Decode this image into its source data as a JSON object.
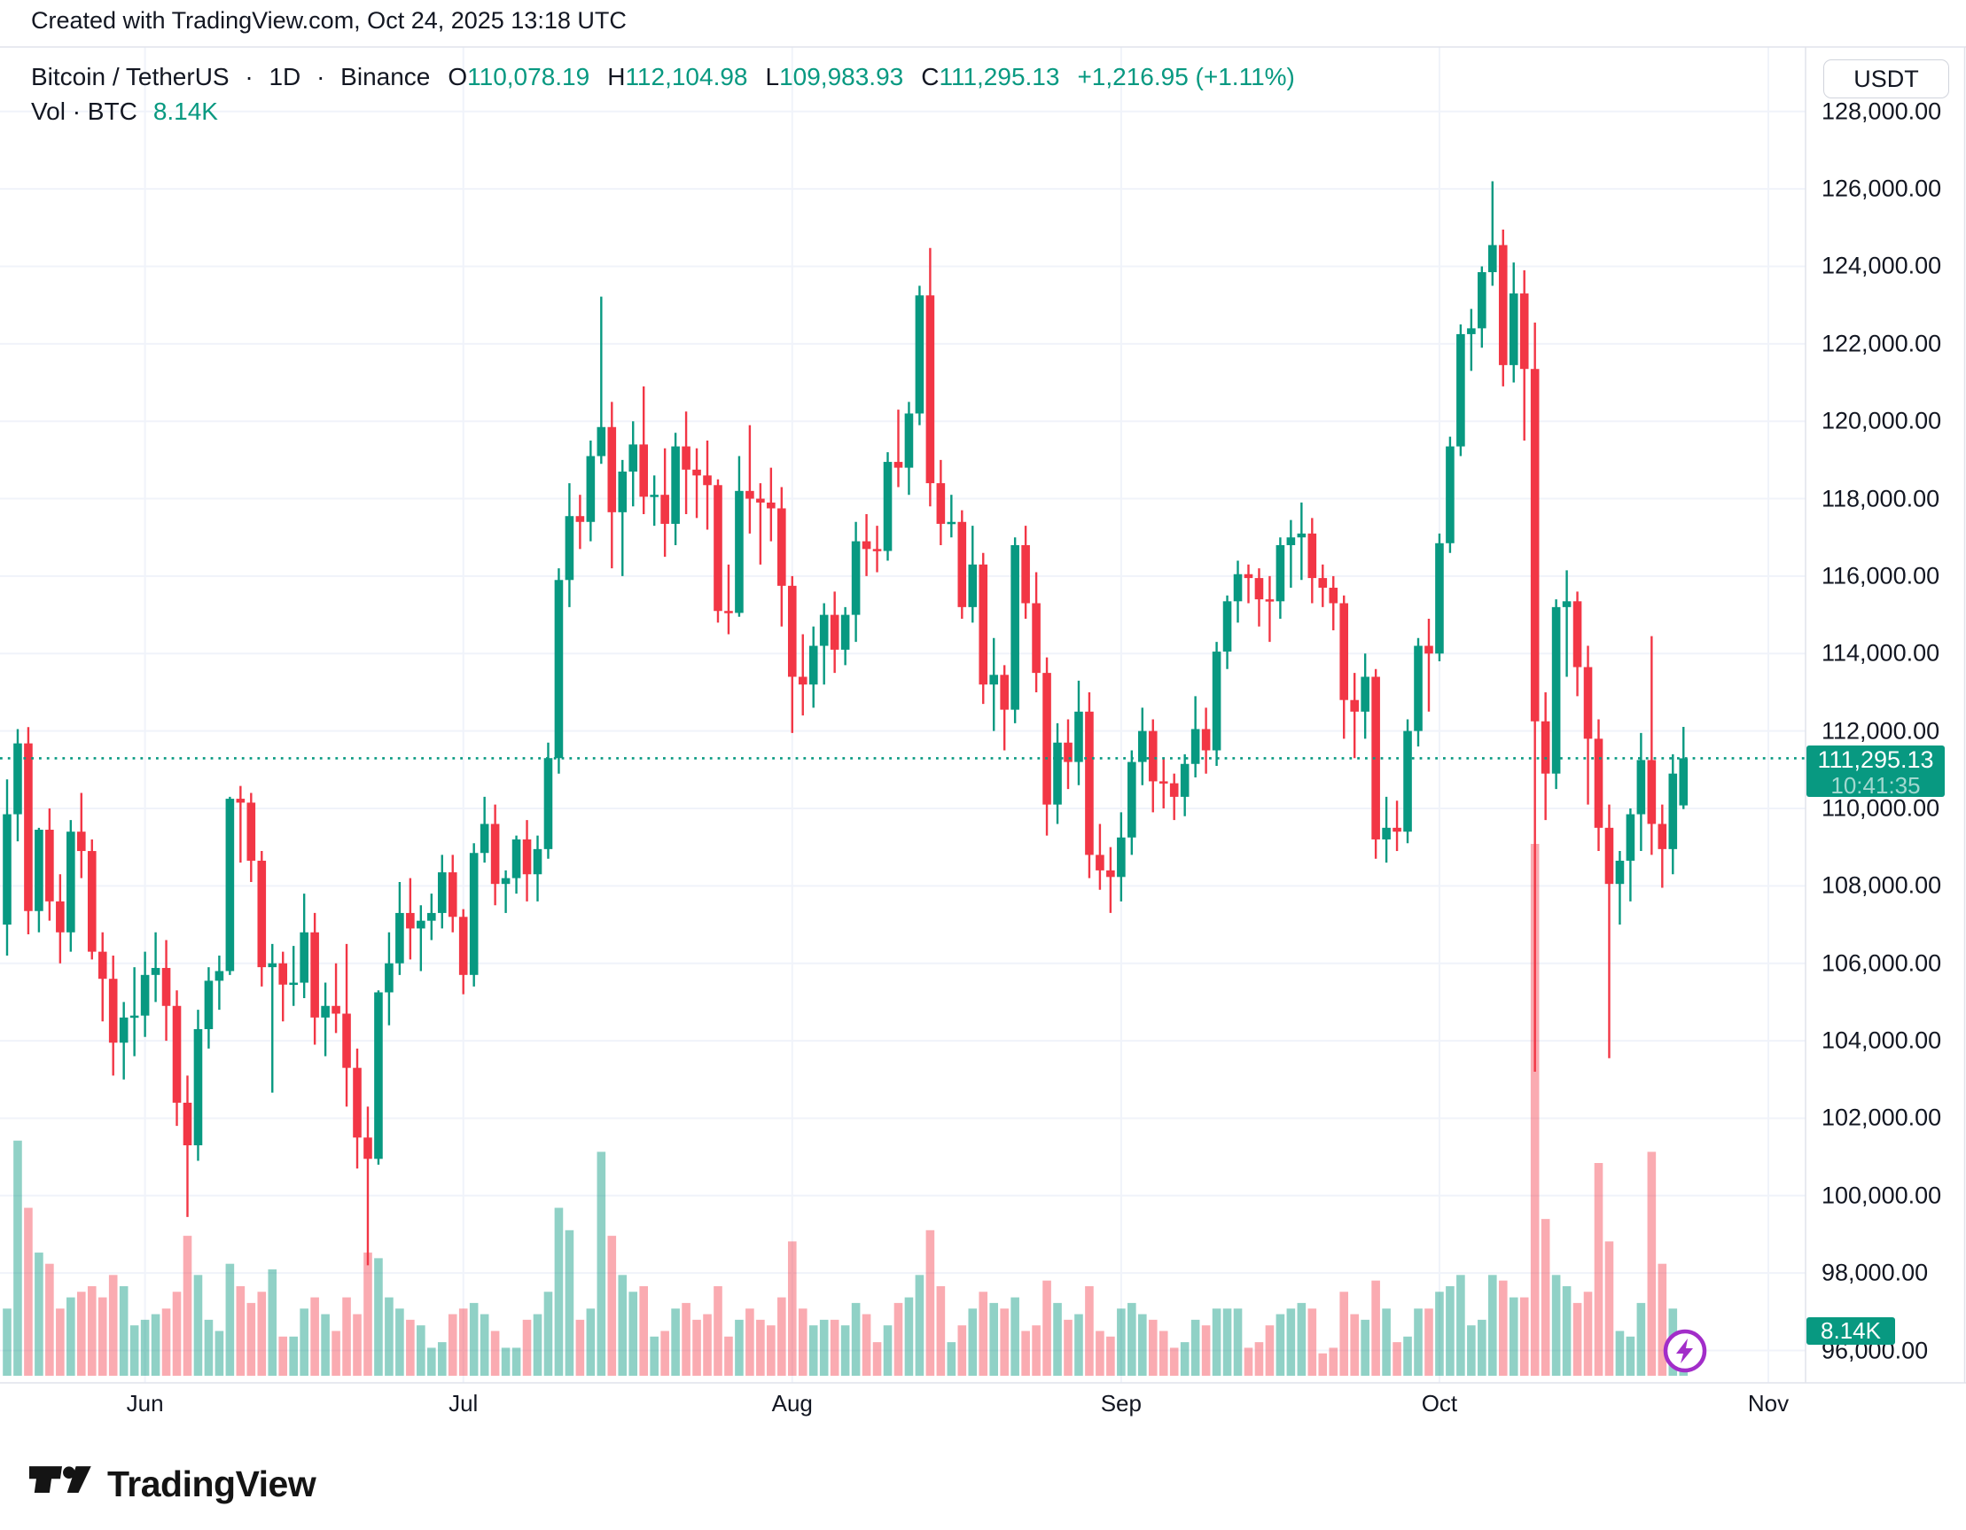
{
  "attribution": "Created with TradingView.com, Oct 24, 2025 13:18 UTC",
  "toolbar": {
    "currency_button_label": "USDT"
  },
  "legend": {
    "symbol": "Bitcoin / TetherUS",
    "separator": "·",
    "interval": "1D",
    "exchange": "Binance",
    "ohlc": [
      {
        "label": "O",
        "value": "110,078.19"
      },
      {
        "label": "H",
        "value": "112,104.98"
      },
      {
        "label": "L",
        "value": "109,983.93"
      },
      {
        "label": "C",
        "value": "111,295.13"
      }
    ],
    "change": "+1,216.95 (+1.11%)",
    "volume_label": "Vol · BTC",
    "volume_value": "8.14K"
  },
  "price_axis": {
    "labels": [
      "128,000.00",
      "126,000.00",
      "124,000.00",
      "122,000.00",
      "120,000.00",
      "118,000.00",
      "116,000.00",
      "114,000.00",
      "112,000.00",
      "110,000.00",
      "108,000.00",
      "106,000.00",
      "104,000.00",
      "102,000.00",
      "100,000.00",
      "98,000.00",
      "96,000.00"
    ],
    "values": [
      128000,
      126000,
      124000,
      122000,
      120000,
      118000,
      116000,
      114000,
      112000,
      110000,
      108000,
      106000,
      104000,
      102000,
      100000,
      98000,
      96000
    ],
    "current_price_label": "111,295.13",
    "countdown": "10:41:35"
  },
  "time_axis": {
    "months": [
      {
        "label": "Jun",
        "index": 13
      },
      {
        "label": "Jul",
        "index": 43
      },
      {
        "label": "Aug",
        "index": 74
      },
      {
        "label": "Sep",
        "index": 105
      },
      {
        "label": "Oct",
        "index": 135
      },
      {
        "label": "Nov",
        "index": 166
      }
    ]
  },
  "volume_badge": "8.14K",
  "footer": {
    "logo_text": "TradingView"
  },
  "colors": {
    "up": "#089981",
    "down": "#F23645",
    "volume_up": "rgba(8,153,129,0.45)",
    "volume_down": "rgba(242,54,69,0.42)",
    "grid": "#f0f3fa",
    "border": "#e0e3eb",
    "text": "#131722",
    "badge_bg": "#089981",
    "flash_purple": "#A22DC9"
  },
  "chart_data": {
    "type": "candlestick+volume",
    "symbol": "BTCUSDT",
    "timeframe": "1D",
    "year": 2025,
    "current_price": 111295.13,
    "price_axis_range_visible": [
      94600,
      128900
    ],
    "volume_unit": "K BTC",
    "volume_scale_max": 95,
    "grid": {
      "horizontal_step": 2000,
      "vertical": "month-start"
    },
    "columns": [
      "date",
      "open",
      "high",
      "low",
      "close",
      "volume_kBTC"
    ],
    "candles": [
      [
        "05-19",
        107000,
        110750,
        106200,
        109850,
        12
      ],
      [
        "05-20",
        109850,
        112050,
        109150,
        111680,
        42
      ],
      [
        "05-21",
        111680,
        112100,
        106750,
        107350,
        30
      ],
      [
        "05-22",
        107350,
        109500,
        106800,
        109450,
        22
      ],
      [
        "05-23",
        109450,
        110000,
        107100,
        107600,
        20
      ],
      [
        "05-24",
        107600,
        108300,
        106000,
        106800,
        12
      ],
      [
        "05-25",
        106800,
        109700,
        106300,
        109400,
        14
      ],
      [
        "05-26",
        109400,
        110400,
        108200,
        108900,
        15
      ],
      [
        "05-27",
        108900,
        109200,
        106100,
        106300,
        16
      ],
      [
        "05-28",
        106300,
        106800,
        104500,
        105600,
        14
      ],
      [
        "05-29",
        105600,
        106200,
        103100,
        103950,
        18
      ],
      [
        "05-30",
        103950,
        105000,
        103000,
        104600,
        16
      ],
      [
        "05-31",
        104600,
        105900,
        103600,
        104650,
        9
      ],
      [
        "06-01",
        104650,
        106300,
        104100,
        105700,
        10
      ],
      [
        "06-02",
        105700,
        106800,
        105000,
        105880,
        11
      ],
      [
        "06-03",
        105880,
        106600,
        104000,
        104900,
        12
      ],
      [
        "06-04",
        104900,
        105300,
        101800,
        102400,
        15
      ],
      [
        "06-05",
        102400,
        103100,
        99450,
        101300,
        25
      ],
      [
        "06-06",
        101300,
        104800,
        100900,
        104300,
        18
      ],
      [
        "06-07",
        104300,
        105900,
        103800,
        105550,
        10
      ],
      [
        "06-08",
        105550,
        106200,
        104800,
        105800,
        8
      ],
      [
        "06-09",
        105800,
        110300,
        105700,
        110250,
        20
      ],
      [
        "06-10",
        110250,
        110580,
        108600,
        110150,
        16
      ],
      [
        "06-11",
        110150,
        110400,
        108100,
        108650,
        13
      ],
      [
        "06-12",
        108650,
        108900,
        105400,
        105900,
        15
      ],
      [
        "06-13",
        105900,
        106500,
        102660,
        106000,
        19
      ],
      [
        "06-14",
        106000,
        106300,
        104500,
        105450,
        7
      ],
      [
        "06-15",
        105450,
        106450,
        104900,
        105500,
        7
      ],
      [
        "06-16",
        105500,
        107800,
        105100,
        106800,
        12
      ],
      [
        "06-17",
        106800,
        107300,
        103900,
        104600,
        14
      ],
      [
        "06-18",
        104600,
        105500,
        103600,
        104900,
        11
      ],
      [
        "06-19",
        104900,
        106000,
        104200,
        104700,
        8
      ],
      [
        "06-20",
        104700,
        106500,
        102300,
        103300,
        14
      ],
      [
        "06-21",
        103300,
        103800,
        100700,
        101500,
        11
      ],
      [
        "06-22",
        101500,
        102300,
        98200,
        100950,
        22
      ],
      [
        "06-23",
        100950,
        105300,
        100800,
        105250,
        21
      ],
      [
        "06-24",
        105250,
        106800,
        104400,
        106000,
        14
      ],
      [
        "06-25",
        106000,
        108100,
        105700,
        107300,
        12
      ],
      [
        "06-26",
        107300,
        108200,
        106100,
        106900,
        10
      ],
      [
        "06-27",
        106900,
        107500,
        105800,
        107100,
        9
      ],
      [
        "06-28",
        107100,
        107800,
        106600,
        107300,
        5
      ],
      [
        "06-29",
        107300,
        108800,
        106900,
        108350,
        6
      ],
      [
        "06-30",
        108350,
        108800,
        106800,
        107200,
        11
      ],
      [
        "07-01",
        107200,
        107400,
        105200,
        105700,
        12
      ],
      [
        "07-02",
        105700,
        109100,
        105400,
        108850,
        13
      ],
      [
        "07-03",
        108850,
        110300,
        108600,
        109600,
        11
      ],
      [
        "07-04",
        109600,
        110100,
        107500,
        108050,
        8
      ],
      [
        "07-05",
        108050,
        108400,
        107300,
        108200,
        5
      ],
      [
        "07-06",
        108200,
        109300,
        107800,
        109200,
        5
      ],
      [
        "07-07",
        109200,
        109700,
        107600,
        108300,
        10
      ],
      [
        "07-08",
        108300,
        109300,
        107600,
        108950,
        11
      ],
      [
        "07-09",
        108950,
        111700,
        108700,
        111300,
        15
      ],
      [
        "07-10",
        111300,
        116200,
        110900,
        115900,
        30
      ],
      [
        "07-11",
        115900,
        118400,
        115200,
        117550,
        26
      ],
      [
        "07-12",
        117550,
        118100,
        116700,
        117400,
        10
      ],
      [
        "07-13",
        117400,
        119500,
        116900,
        119100,
        12
      ],
      [
        "07-14",
        119100,
        123218,
        118900,
        119850,
        40
      ],
      [
        "07-15",
        119850,
        120500,
        116200,
        117650,
        25
      ],
      [
        "07-16",
        117650,
        119000,
        116000,
        118700,
        18
      ],
      [
        "07-17",
        118700,
        120000,
        117800,
        119400,
        15
      ],
      [
        "07-18",
        119400,
        120900,
        117600,
        118050,
        16
      ],
      [
        "07-19",
        118050,
        118600,
        117300,
        118100,
        7
      ],
      [
        "07-20",
        118100,
        119300,
        116500,
        117350,
        8
      ],
      [
        "07-21",
        117350,
        119700,
        116800,
        119350,
        12
      ],
      [
        "07-22",
        119350,
        120250,
        117600,
        118750,
        13
      ],
      [
        "07-23",
        118750,
        119300,
        117500,
        118600,
        10
      ],
      [
        "07-24",
        118600,
        119500,
        117200,
        118350,
        11
      ],
      [
        "07-25",
        118350,
        118500,
        114800,
        115100,
        16
      ],
      [
        "07-26",
        115100,
        116300,
        114500,
        115050,
        7
      ],
      [
        "07-27",
        115050,
        119100,
        114950,
        118200,
        10
      ],
      [
        "07-28",
        118200,
        119900,
        117100,
        118000,
        12
      ],
      [
        "07-29",
        118000,
        118400,
        116300,
        117900,
        10
      ],
      [
        "07-30",
        117900,
        118800,
        116900,
        117750,
        9
      ],
      [
        "07-31",
        117750,
        118300,
        114700,
        115750,
        14
      ],
      [
        "08-01",
        115750,
        116000,
        111950,
        113400,
        24
      ],
      [
        "08-02",
        113400,
        114500,
        112400,
        113200,
        12
      ],
      [
        "08-03",
        113200,
        114700,
        112600,
        114200,
        9
      ],
      [
        "08-04",
        114200,
        115300,
        113200,
        115000,
        10
      ],
      [
        "08-05",
        115000,
        115600,
        113500,
        114100,
        10
      ],
      [
        "08-06",
        114100,
        115200,
        113700,
        115000,
        9
      ],
      [
        "08-07",
        115000,
        117400,
        114300,
        116900,
        13
      ],
      [
        "08-08",
        116900,
        117600,
        116000,
        116700,
        11
      ],
      [
        "08-09",
        116700,
        117300,
        116100,
        116650,
        6
      ],
      [
        "08-10",
        116650,
        119200,
        116400,
        118950,
        9
      ],
      [
        "08-11",
        118950,
        120300,
        118300,
        118800,
        13
      ],
      [
        "08-12",
        118800,
        120500,
        118100,
        120200,
        14
      ],
      [
        "08-13",
        120200,
        123500,
        119900,
        123250,
        18
      ],
      [
        "08-14",
        123250,
        124474,
        117800,
        118400,
        26
      ],
      [
        "08-15",
        118400,
        119000,
        116800,
        117350,
        16
      ],
      [
        "08-16",
        117350,
        118100,
        117000,
        117400,
        6
      ],
      [
        "08-17",
        117400,
        117700,
        114900,
        115200,
        9
      ],
      [
        "08-18",
        115200,
        117300,
        114800,
        116300,
        12
      ],
      [
        "08-19",
        116300,
        116600,
        112700,
        113200,
        15
      ],
      [
        "08-20",
        113200,
        114400,
        112000,
        113450,
        13
      ],
      [
        "08-21",
        113450,
        113700,
        111500,
        112550,
        12
      ],
      [
        "08-22",
        112550,
        117000,
        112200,
        116800,
        14
      ],
      [
        "08-23",
        116800,
        117300,
        114900,
        115300,
        8
      ],
      [
        "08-24",
        115300,
        116100,
        113000,
        113500,
        9
      ],
      [
        "08-25",
        113500,
        113900,
        109300,
        110100,
        17
      ],
      [
        "08-26",
        110100,
        112200,
        109600,
        111700,
        13
      ],
      [
        "08-27",
        111700,
        112300,
        110500,
        111200,
        10
      ],
      [
        "08-28",
        111200,
        113300,
        110600,
        112500,
        11
      ],
      [
        "08-29",
        112500,
        113000,
        108200,
        108800,
        16
      ],
      [
        "08-30",
        108800,
        109600,
        107900,
        108400,
        8
      ],
      [
        "08-31",
        108400,
        109000,
        107300,
        108230,
        7
      ],
      [
        "09-01",
        108230,
        109900,
        107600,
        109250,
        12
      ],
      [
        "09-02",
        109250,
        111500,
        108800,
        111200,
        13
      ],
      [
        "09-03",
        111200,
        112600,
        110600,
        112000,
        11
      ],
      [
        "09-04",
        112000,
        112300,
        109900,
        110700,
        10
      ],
      [
        "09-05",
        110700,
        111300,
        110000,
        110650,
        8
      ],
      [
        "09-06",
        110650,
        110900,
        109700,
        110300,
        5
      ],
      [
        "09-07",
        110300,
        111400,
        109800,
        111150,
        6
      ],
      [
        "09-08",
        111150,
        112900,
        110800,
        112050,
        10
      ],
      [
        "09-09",
        112050,
        112600,
        110900,
        111500,
        9
      ],
      [
        "09-10",
        111500,
        114300,
        111100,
        114050,
        12
      ],
      [
        "09-11",
        114050,
        115500,
        113600,
        115350,
        12
      ],
      [
        "09-12",
        115350,
        116400,
        114800,
        116050,
        12
      ],
      [
        "09-13",
        116050,
        116300,
        115300,
        115950,
        5
      ],
      [
        "09-14",
        115950,
        116200,
        114700,
        115400,
        6
      ],
      [
        "09-15",
        115400,
        116000,
        114300,
        115350,
        9
      ],
      [
        "09-16",
        115350,
        117000,
        114900,
        116800,
        11
      ],
      [
        "09-17",
        116800,
        117450,
        115700,
        117000,
        12
      ],
      [
        "09-18",
        117000,
        117900,
        115900,
        117100,
        13
      ],
      [
        "09-19",
        117100,
        117500,
        115300,
        115950,
        12
      ],
      [
        "09-20",
        115950,
        116300,
        115200,
        115700,
        4
      ],
      [
        "09-21",
        115700,
        116000,
        114600,
        115300,
        5
      ],
      [
        "09-22",
        115300,
        115500,
        111800,
        112800,
        15
      ],
      [
        "09-23",
        112800,
        113500,
        111300,
        112500,
        11
      ],
      [
        "09-24",
        112500,
        114000,
        111800,
        113400,
        10
      ],
      [
        "09-25",
        113400,
        113600,
        108700,
        109200,
        17
      ],
      [
        "09-26",
        109200,
        110300,
        108600,
        109500,
        12
      ],
      [
        "09-27",
        109500,
        110200,
        108900,
        109400,
        6
      ],
      [
        "09-28",
        109400,
        112300,
        109100,
        112000,
        7
      ],
      [
        "09-29",
        112000,
        114400,
        111600,
        114200,
        12
      ],
      [
        "09-30",
        114200,
        114900,
        112500,
        114000,
        12
      ],
      [
        "10-01",
        114000,
        117100,
        113800,
        116850,
        15
      ],
      [
        "10-02",
        116850,
        119600,
        116600,
        119350,
        16
      ],
      [
        "10-03",
        119350,
        122500,
        119100,
        122250,
        18
      ],
      [
        "10-04",
        122250,
        122900,
        121300,
        122400,
        9
      ],
      [
        "10-05",
        122400,
        124000,
        121900,
        123850,
        10
      ],
      [
        "10-06",
        123850,
        126198,
        123500,
        124550,
        18
      ],
      [
        "10-07",
        124550,
        124950,
        120900,
        121450,
        17
      ],
      [
        "10-08",
        121450,
        124100,
        121000,
        123300,
        14
      ],
      [
        "10-09",
        123300,
        123900,
        119500,
        121350,
        14
      ],
      [
        "10-10",
        121350,
        122550,
        103200,
        112250,
        95
      ],
      [
        "10-11",
        112250,
        113000,
        109700,
        110900,
        28
      ],
      [
        "10-12",
        110900,
        115400,
        110500,
        115200,
        18
      ],
      [
        "10-13",
        115200,
        116150,
        113400,
        115350,
        16
      ],
      [
        "10-14",
        115350,
        115600,
        112900,
        113650,
        13
      ],
      [
        "10-15",
        113650,
        114200,
        110100,
        111800,
        15
      ],
      [
        "10-16",
        111800,
        112300,
        108900,
        109500,
        38
      ],
      [
        "10-17",
        109500,
        110100,
        103550,
        108050,
        24
      ],
      [
        "10-18",
        108050,
        108900,
        107000,
        108650,
        8
      ],
      [
        "10-19",
        108650,
        110000,
        107600,
        109850,
        7
      ],
      [
        "10-20",
        109850,
        111950,
        108900,
        111250,
        13
      ],
      [
        "10-21",
        111250,
        114450,
        108800,
        109600,
        40
      ],
      [
        "10-22",
        109600,
        110100,
        107950,
        108950,
        20
      ],
      [
        "10-23",
        108950,
        111400,
        108300,
        110900,
        12
      ],
      [
        "10-24",
        110078.19,
        112104.98,
        109983.93,
        111295.13,
        8.14
      ]
    ]
  }
}
